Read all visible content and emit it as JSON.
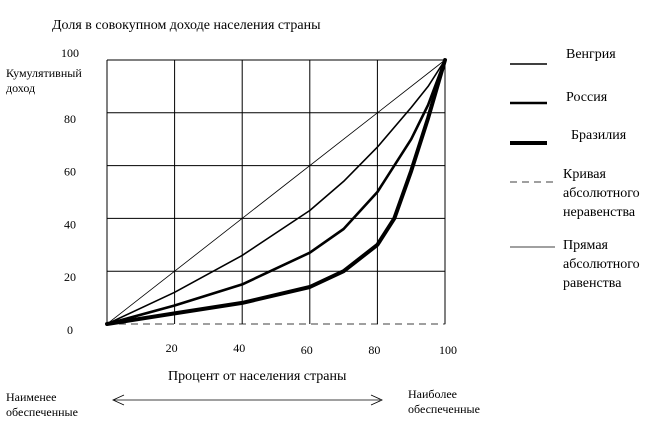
{
  "chart_data": {
    "type": "line",
    "title": "Доля в совокупном доходе населения страны",
    "xlabel": "Процент от населения страны",
    "ylabel_lines": [
      "Кумулятивный",
      "доход"
    ],
    "xlim": [
      0,
      100
    ],
    "ylim": [
      0,
      100
    ],
    "grid": true,
    "x_ticks": [
      {
        "value": 20,
        "label": "20"
      },
      {
        "value": 40,
        "label": "40"
      },
      {
        "value": 60,
        "label": "60"
      },
      {
        "value": 80,
        "label": "80"
      },
      {
        "value": 100,
        "label": "100"
      }
    ],
    "y_ticks": [
      {
        "value": 0,
        "label": "0"
      },
      {
        "value": 20,
        "label": "20"
      },
      {
        "value": 40,
        "label": "40"
      },
      {
        "value": 60,
        "label": "60"
      },
      {
        "value": 80,
        "label": "80"
      },
      {
        "value": 100,
        "label": "100"
      }
    ],
    "series": [
      {
        "name": "Венгрия",
        "line": "solid",
        "weight": "medium",
        "x": [
          0,
          20,
          40,
          60,
          70,
          80,
          90,
          95,
          100
        ],
        "y": [
          0,
          12,
          26,
          43,
          54,
          67,
          82,
          90,
          100
        ]
      },
      {
        "name": "Россия",
        "line": "solid",
        "weight": "heavy",
        "x": [
          0,
          20,
          40,
          60,
          70,
          80,
          90,
          95,
          100
        ],
        "y": [
          0,
          7,
          15,
          27,
          36,
          50,
          70,
          83,
          100
        ]
      },
      {
        "name": "Бразилия",
        "line": "solid",
        "weight": "heaviest",
        "x": [
          0,
          20,
          40,
          60,
          70,
          80,
          85,
          90,
          95,
          100
        ],
        "y": [
          0,
          4,
          8,
          14,
          20,
          30,
          40,
          58,
          78,
          100
        ]
      },
      {
        "name": "Кривая абсолютного неравенства",
        "line": "dashed",
        "weight": "thin",
        "x": [
          0,
          100,
          100
        ],
        "y": [
          0,
          0,
          100
        ]
      },
      {
        "name": "Прямая абсолютного равенства",
        "line": "solid",
        "weight": "thin",
        "x": [
          0,
          100
        ],
        "y": [
          0,
          100
        ]
      }
    ],
    "legend": {
      "placement": "right",
      "entries": [
        {
          "label": "Венгрия",
          "line": "solid",
          "weight": "medium"
        },
        {
          "label": "Россия",
          "line": "solid",
          "weight": "heavy"
        },
        {
          "label": "Бразилия",
          "line": "solid",
          "weight": "heaviest"
        },
        {
          "label": "Кривая абсолютного неравенства",
          "line": "dashed",
          "weight": "thin"
        },
        {
          "label": "Прямая абсолютного равенства",
          "line": "solid",
          "weight": "thin"
        }
      ]
    },
    "annotations": {
      "least": "Наименее обеспеченные",
      "most": "Наиболее обеспеченные"
    }
  }
}
